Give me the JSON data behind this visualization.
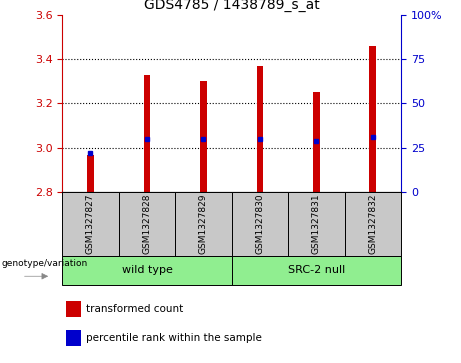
{
  "title": "GDS4785 / 1438789_s_at",
  "samples": [
    "GSM1327827",
    "GSM1327828",
    "GSM1327829",
    "GSM1327830",
    "GSM1327831",
    "GSM1327832"
  ],
  "bar_values": [
    2.97,
    3.33,
    3.3,
    3.37,
    3.25,
    3.46
  ],
  "percentile_values": [
    2.975,
    3.04,
    3.04,
    3.04,
    3.03,
    3.05
  ],
  "bar_bottom": 2.8,
  "ylim_left": [
    2.8,
    3.6
  ],
  "ylim_right": [
    0,
    100
  ],
  "yticks_left": [
    2.8,
    3.0,
    3.2,
    3.4,
    3.6
  ],
  "yticks_right": [
    0,
    25,
    50,
    75,
    100
  ],
  "groups": [
    {
      "label": "wild type",
      "start": 0,
      "end": 3
    },
    {
      "label": "SRC-2 null",
      "start": 3,
      "end": 6
    }
  ],
  "bar_color": "#CC0000",
  "dot_color": "#0000CC",
  "plot_bg_color": "#FFFFFF",
  "label_bg_color": "#C8C8C8",
  "group_label_color": "#90EE90",
  "left_axis_color": "#CC0000",
  "right_axis_color": "#0000CC",
  "grid_dotted_color": "#000000",
  "genotype_label": "genotype/variation",
  "bar_width": 0.12,
  "legend_items": [
    {
      "color": "#CC0000",
      "label": "transformed count"
    },
    {
      "color": "#0000CC",
      "label": "percentile rank within the sample"
    }
  ]
}
